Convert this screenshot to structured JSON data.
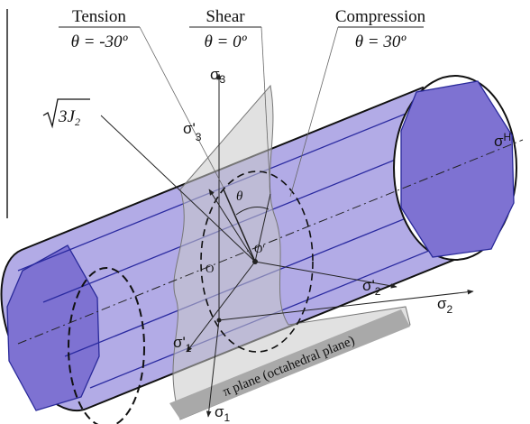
{
  "header": [
    {
      "name": "Tension",
      "angle": "θ = -30º"
    },
    {
      "name": "Shear",
      "angle": "θ = 0º"
    },
    {
      "name": "Compression",
      "angle": "θ = 30º"
    }
  ],
  "radius_label": {
    "text": "3J",
    "sub": "2"
  },
  "axes": {
    "sigma_3": {
      "symbol": "σ",
      "sub": "3"
    },
    "sigma_3_prime": {
      "symbol": "σ'",
      "sub": "3"
    },
    "sigma_h": {
      "symbol": "σ",
      "sub": "H"
    },
    "sigma_2_prime": {
      "symbol": "σ'",
      "sub": "2"
    },
    "sigma_2": {
      "symbol": "σ",
      "sub": "2"
    },
    "sigma_1_prime": {
      "symbol": "σ'",
      "sub": "1"
    },
    "sigma_1": {
      "symbol": "σ",
      "sub": "1"
    }
  },
  "points": {
    "theta": "θ",
    "origin_prime": "O'",
    "origin": "O"
  },
  "plane_label": "π plane (octahedral plane)"
}
